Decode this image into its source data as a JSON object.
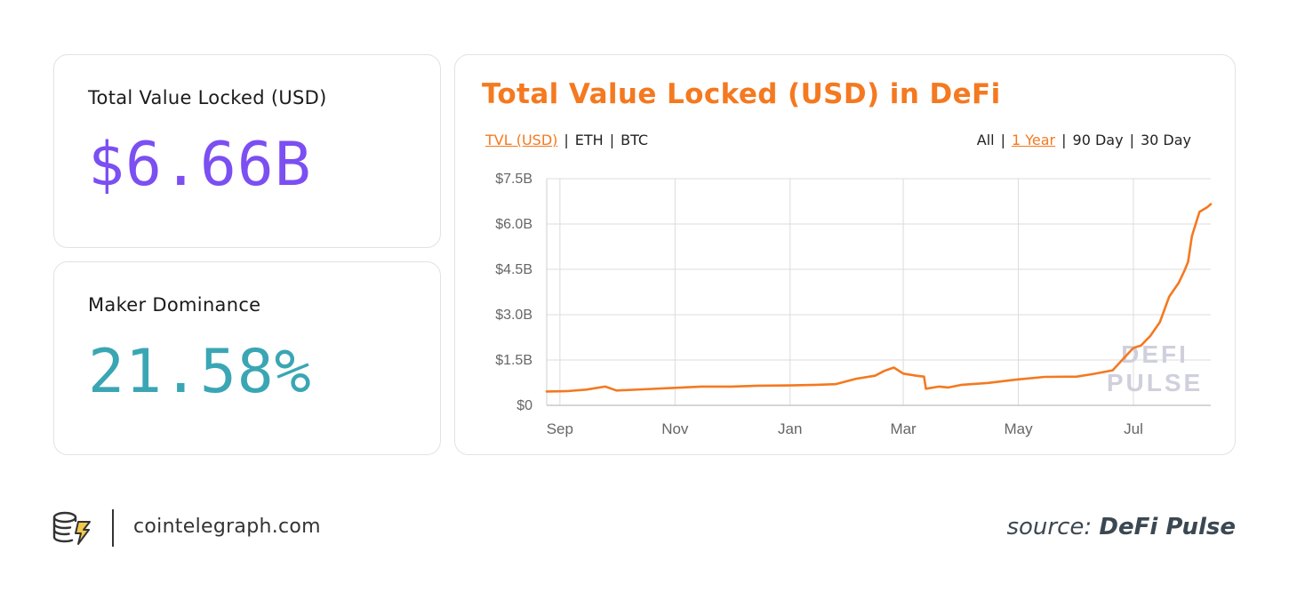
{
  "colors": {
    "purple": "#7b4ff2",
    "teal": "#3aa6b4",
    "orange": "#f47920",
    "grid": "#dcdcdc",
    "axis_text": "#666666",
    "watermark": "#cfd0dc"
  },
  "stats": {
    "tvl": {
      "label": "Total Value Locked (USD)",
      "value": "$6.66B"
    },
    "maker": {
      "label": "Maker Dominance",
      "value": "21.58%"
    }
  },
  "chart_panel": {
    "title": "Total Value Locked (USD) in DeFi",
    "metric_tabs": [
      {
        "label": "TVL (USD)",
        "active": true
      },
      {
        "label": "ETH",
        "active": false
      },
      {
        "label": "BTC",
        "active": false
      }
    ],
    "range_tabs": [
      {
        "label": "All",
        "active": false
      },
      {
        "label": "1 Year",
        "active": true
      },
      {
        "label": "90 Day",
        "active": false
      },
      {
        "label": "30 Day",
        "active": false
      }
    ],
    "watermark_lines": [
      "DEFI",
      "PULSE"
    ]
  },
  "chart_data": {
    "type": "line",
    "title": "Total Value Locked (USD) in DeFi",
    "xlabel": "",
    "ylabel": "",
    "x_ticks": [
      "Sep",
      "Nov",
      "Jan",
      "Mar",
      "May",
      "Jul"
    ],
    "y_ticks": [
      "$0",
      "$1.5B",
      "$3.0B",
      "$4.5B",
      "$6.0B",
      "$7.5B"
    ],
    "ylim": [
      0,
      7.5
    ],
    "units": "USD billions",
    "grid": true,
    "x": [
      "2019-08-25",
      "2019-09-05",
      "2019-09-15",
      "2019-09-25",
      "2019-10-01",
      "2019-10-15",
      "2019-11-01",
      "2019-11-15",
      "2019-12-01",
      "2019-12-15",
      "2020-01-01",
      "2020-01-15",
      "2020-01-25",
      "2020-02-05",
      "2020-02-15",
      "2020-02-20",
      "2020-02-25",
      "2020-03-01",
      "2020-03-08",
      "2020-03-12",
      "2020-03-13",
      "2020-03-20",
      "2020-03-25",
      "2020-04-01",
      "2020-04-15",
      "2020-05-01",
      "2020-05-15",
      "2020-06-01",
      "2020-06-10",
      "2020-06-15",
      "2020-06-20",
      "2020-06-25",
      "2020-07-01",
      "2020-07-05",
      "2020-07-10",
      "2020-07-15",
      "2020-07-20",
      "2020-07-25",
      "2020-07-28",
      "2020-07-30",
      "2020-08-01",
      "2020-08-05",
      "2020-08-09",
      "2020-08-11"
    ],
    "series": [
      {
        "values": [
          0.46,
          0.47,
          0.52,
          0.62,
          0.49,
          0.53,
          0.58,
          0.62,
          0.62,
          0.65,
          0.66,
          0.68,
          0.7,
          0.88,
          0.98,
          1.14,
          1.25,
          1.05,
          0.98,
          0.95,
          0.55,
          0.62,
          0.59,
          0.68,
          0.74,
          0.86,
          0.94,
          0.95,
          1.04,
          1.1,
          1.16,
          1.5,
          1.9,
          1.98,
          2.3,
          2.75,
          3.6,
          4.05,
          4.45,
          4.75,
          5.6,
          6.4,
          6.55,
          6.66
        ]
      }
    ]
  },
  "footer": {
    "site": "cointelegraph.com",
    "source_prefix": "source:",
    "source_name": "DeFi Pulse"
  }
}
